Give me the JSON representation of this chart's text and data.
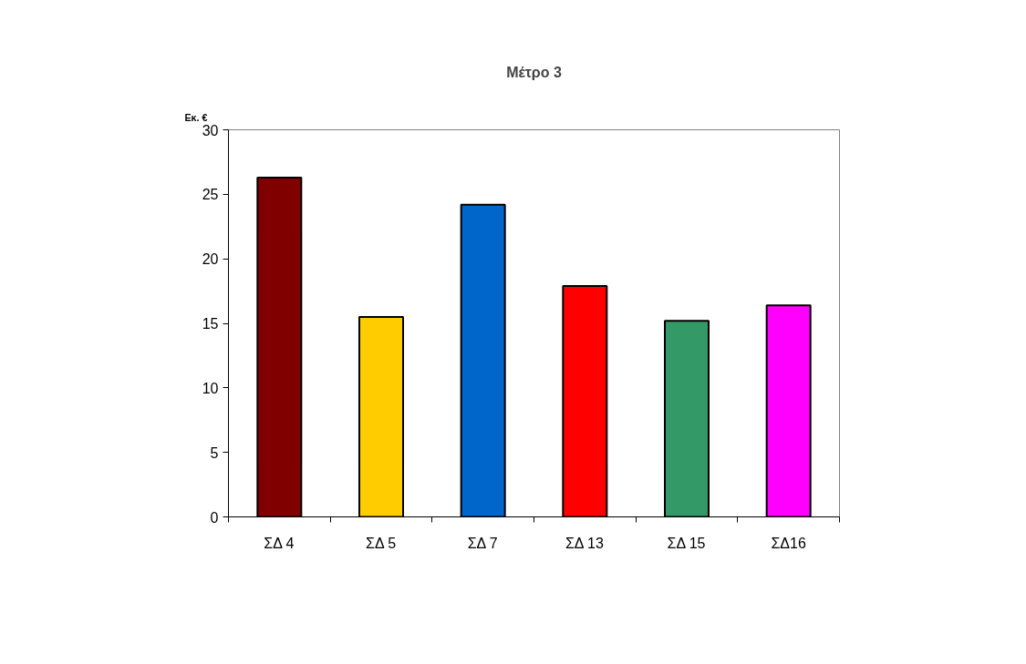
{
  "chart_data": {
    "type": "bar",
    "title": "Μέτρο 3",
    "ylabel": "Εκ. €",
    "categories": [
      "ΣΔ 4",
      "ΣΔ 5",
      "ΣΔ 7",
      "ΣΔ 13",
      "ΣΔ 15",
      "ΣΔ16"
    ],
    "values": [
      26.3,
      15.5,
      24.2,
      17.9,
      15.2,
      16.4
    ],
    "colors": [
      "#800000",
      "#ffcc00",
      "#0066cc",
      "#ff0000",
      "#339966",
      "#ff00ff"
    ],
    "ylim": [
      0,
      30
    ],
    "yticks": [
      0,
      5,
      10,
      15,
      20,
      25,
      30
    ],
    "grid": false
  }
}
